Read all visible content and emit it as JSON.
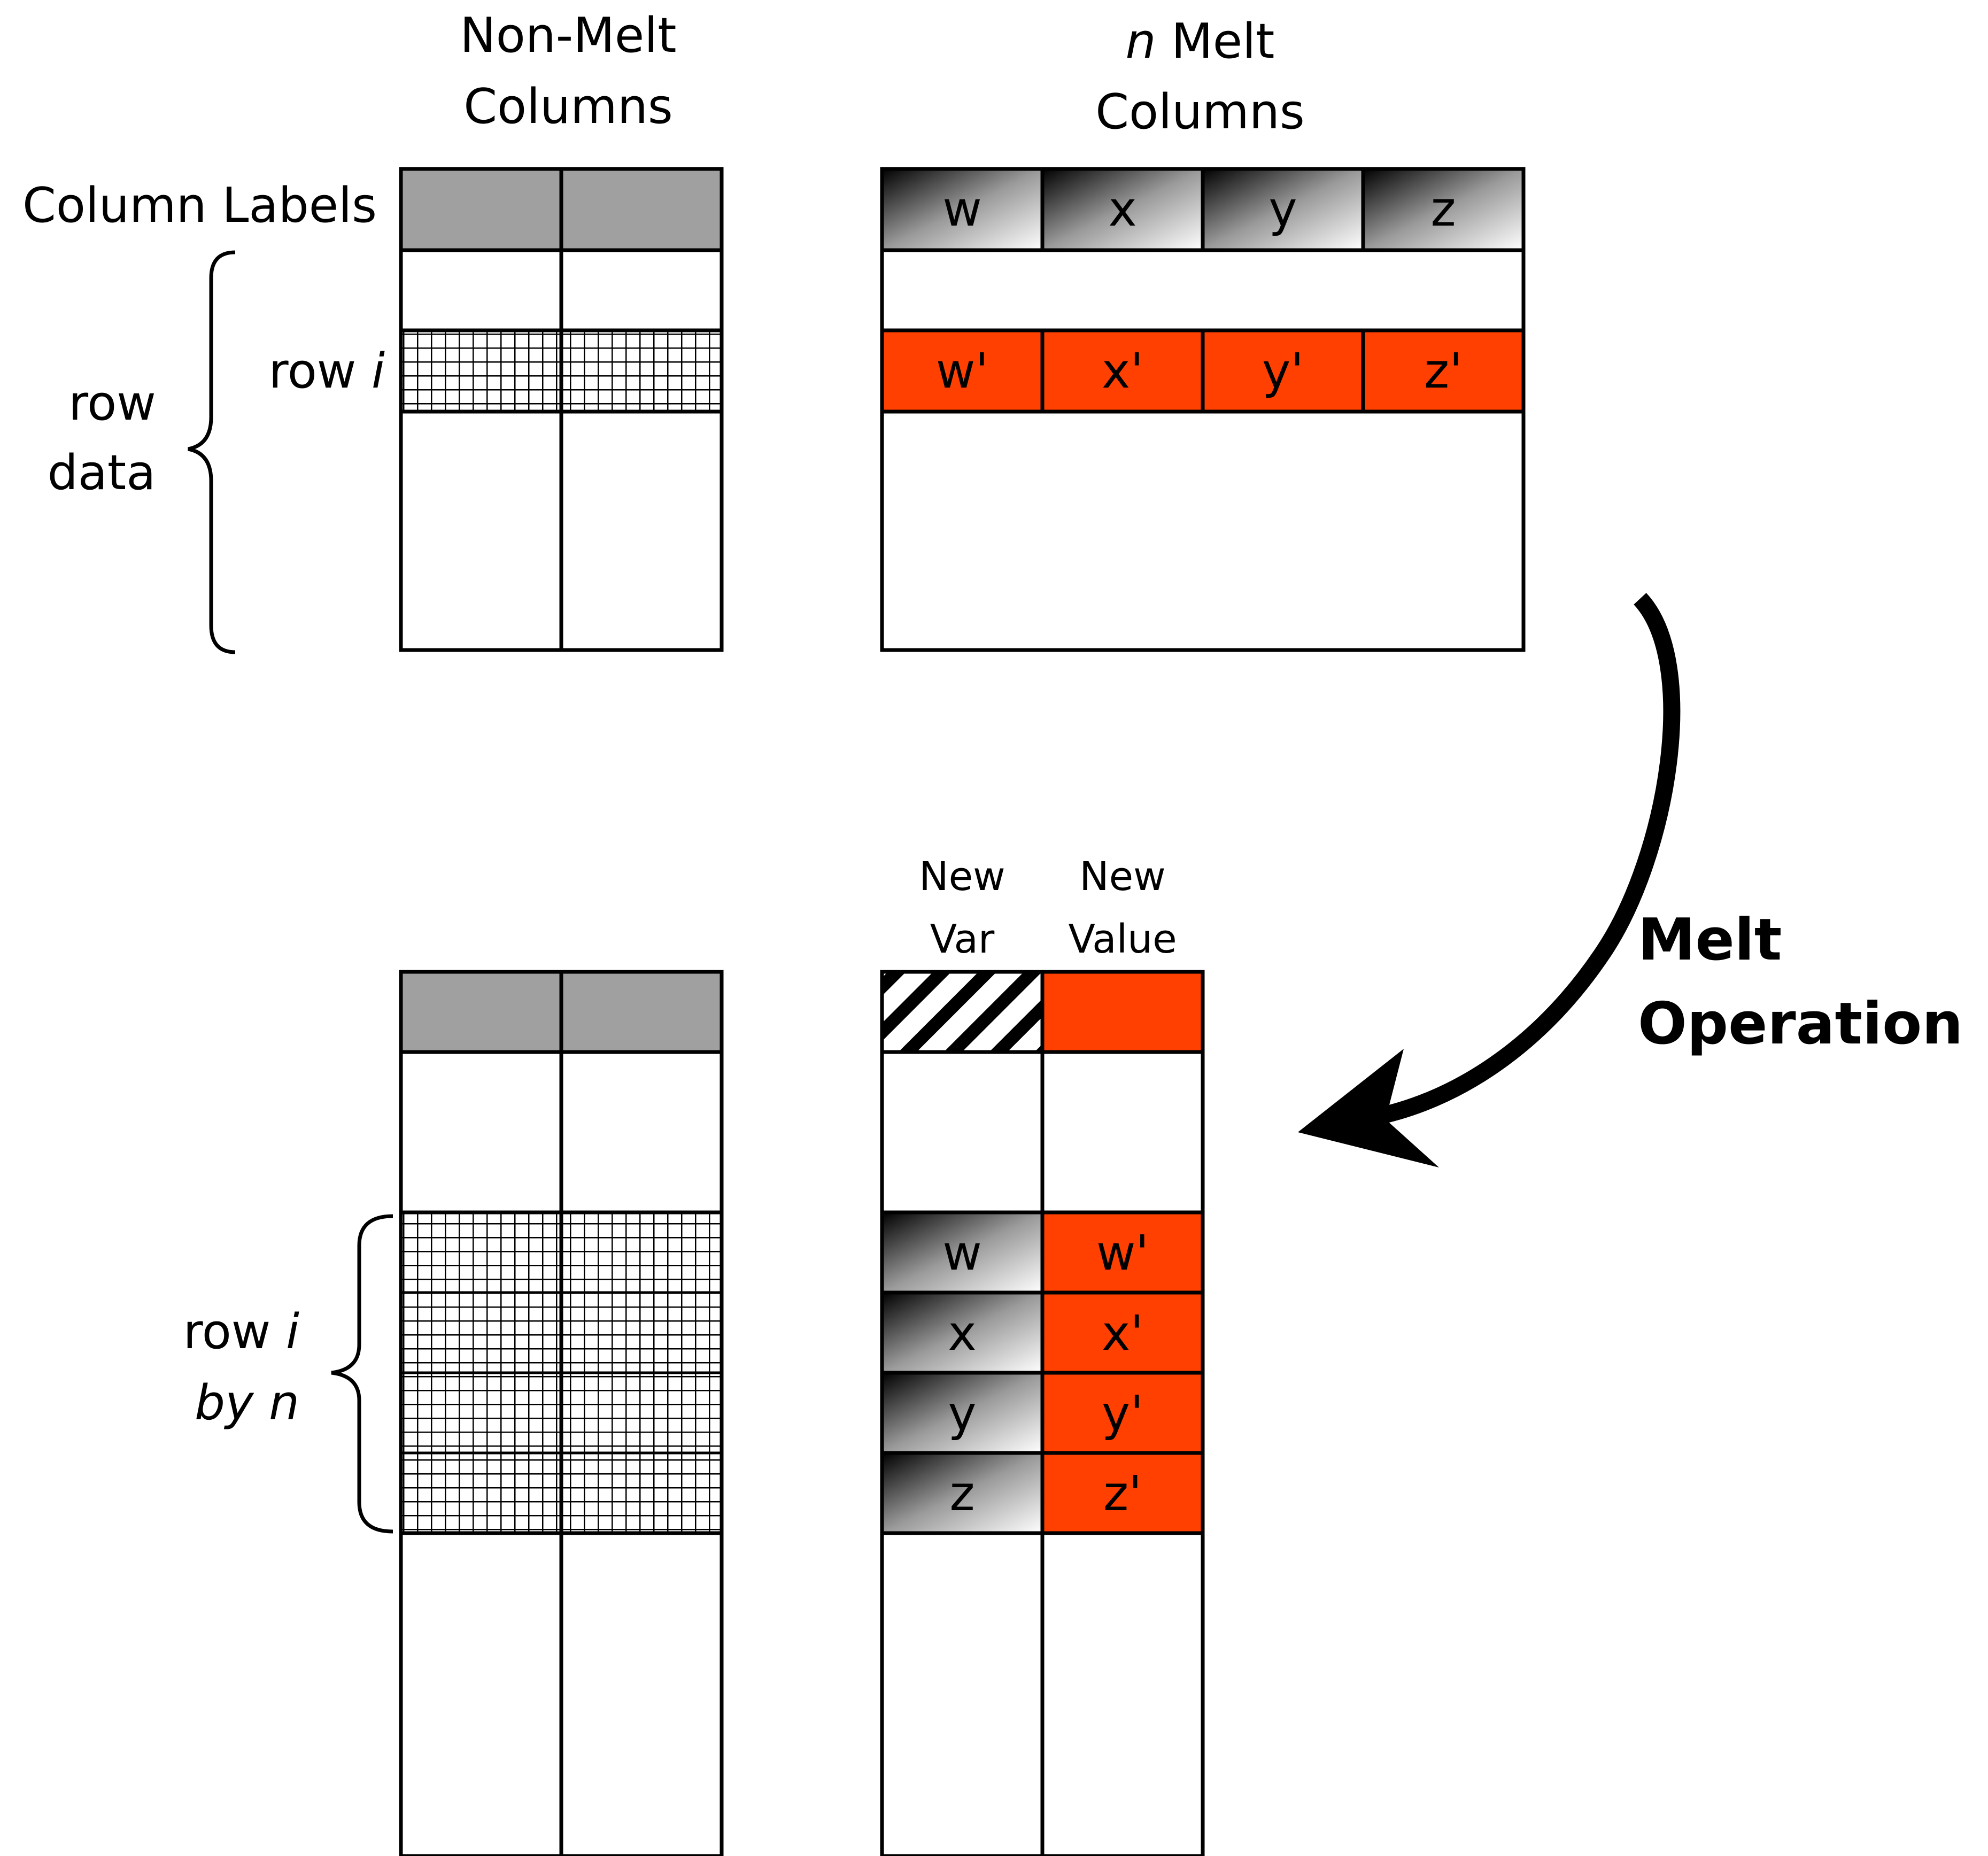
{
  "top": {
    "non_melt_title": [
      "Non-Melt",
      "Columns"
    ],
    "melt_title_italic": "n",
    "melt_title_rest": " Melt",
    "melt_title_line2": "Columns",
    "column_labels": "Column Labels",
    "row_data": [
      "row",
      "data"
    ],
    "row_i_plain": "row ",
    "row_i_italic": "i",
    "melt_headers": [
      "w",
      "x",
      "y",
      "z"
    ],
    "melt_values": [
      "w'",
      "x'",
      "y'",
      "z'"
    ]
  },
  "operation": {
    "line1": "Melt",
    "line2": "Operation"
  },
  "bottom": {
    "new_var": [
      "New",
      "Var"
    ],
    "new_value": [
      "New",
      "Value"
    ],
    "row_i_plain": "row ",
    "row_i_italic": "i",
    "by_n": "by n",
    "var_cells": [
      "w",
      "x",
      "y",
      "z"
    ],
    "value_cells": [
      "w'",
      "x'",
      "y'",
      "z'"
    ]
  },
  "colors": {
    "header_gray": "#a0a0a0",
    "accent_orange": "#ff4000",
    "stroke": "#000000"
  }
}
